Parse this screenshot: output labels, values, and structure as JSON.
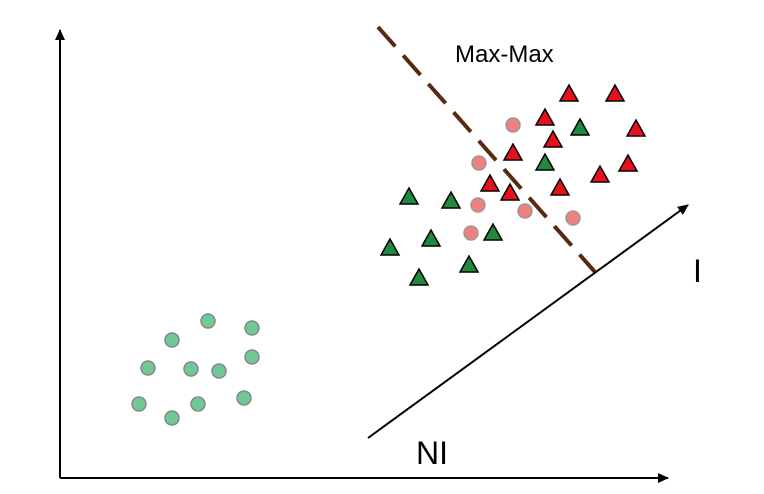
{
  "labels": {
    "region": "Max-Max",
    "axis_end": "I",
    "axis_start": "NI"
  }
}
